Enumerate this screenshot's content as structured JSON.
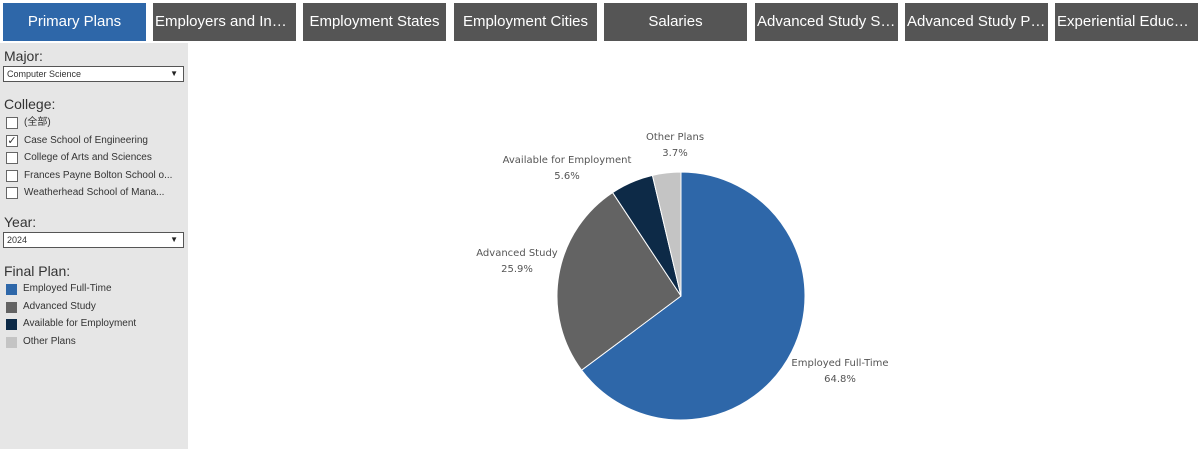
{
  "tabs": [
    {
      "label": "Primary Plans",
      "active": true
    },
    {
      "label": "Employers and Indu...",
      "active": false
    },
    {
      "label": "Employment States",
      "active": false
    },
    {
      "label": "Employment Cities",
      "active": false
    },
    {
      "label": "Salaries",
      "active": false
    },
    {
      "label": "Advanced Study Sc...",
      "active": false
    },
    {
      "label": "Advanced Study Pro...",
      "active": false
    },
    {
      "label": "Experiential Education",
      "active": false
    }
  ],
  "filters": {
    "major": {
      "title": "Major:",
      "value": "Computer Science"
    },
    "college": {
      "title": "College:",
      "options": [
        {
          "label": "(全部)",
          "checked": false
        },
        {
          "label": "Case School of Engineering",
          "checked": true
        },
        {
          "label": "College of Arts and Sciences",
          "checked": false
        },
        {
          "label": "Frances Payne Bolton School o...",
          "checked": false
        },
        {
          "label": "Weatherhead School of Mana...",
          "checked": false
        }
      ]
    },
    "year": {
      "title": "Year:",
      "value": "2024"
    }
  },
  "legend": {
    "title": "Final Plan:",
    "items": [
      {
        "label": "Employed Full-Time",
        "color": "#2e67a9"
      },
      {
        "label": "Advanced Study",
        "color": "#636363"
      },
      {
        "label": "Available for Employment",
        "color": "#0d2a47"
      },
      {
        "label": "Other Plans",
        "color": "#c4c4c4"
      }
    ]
  },
  "chart_data": {
    "type": "pie",
    "slices": [
      {
        "label": "Employed Full-Time",
        "value": 64.8,
        "display": "64.8%",
        "color": "#2e67a9"
      },
      {
        "label": "Advanced Study",
        "value": 25.9,
        "display": "25.9%",
        "color": "#636363"
      },
      {
        "label": "Available for Employment",
        "value": 5.6,
        "display": "5.6%",
        "color": "#0d2a47"
      },
      {
        "label": "Other Plans",
        "value": 3.7,
        "display": "3.7%",
        "color": "#c4c4c4"
      }
    ]
  }
}
